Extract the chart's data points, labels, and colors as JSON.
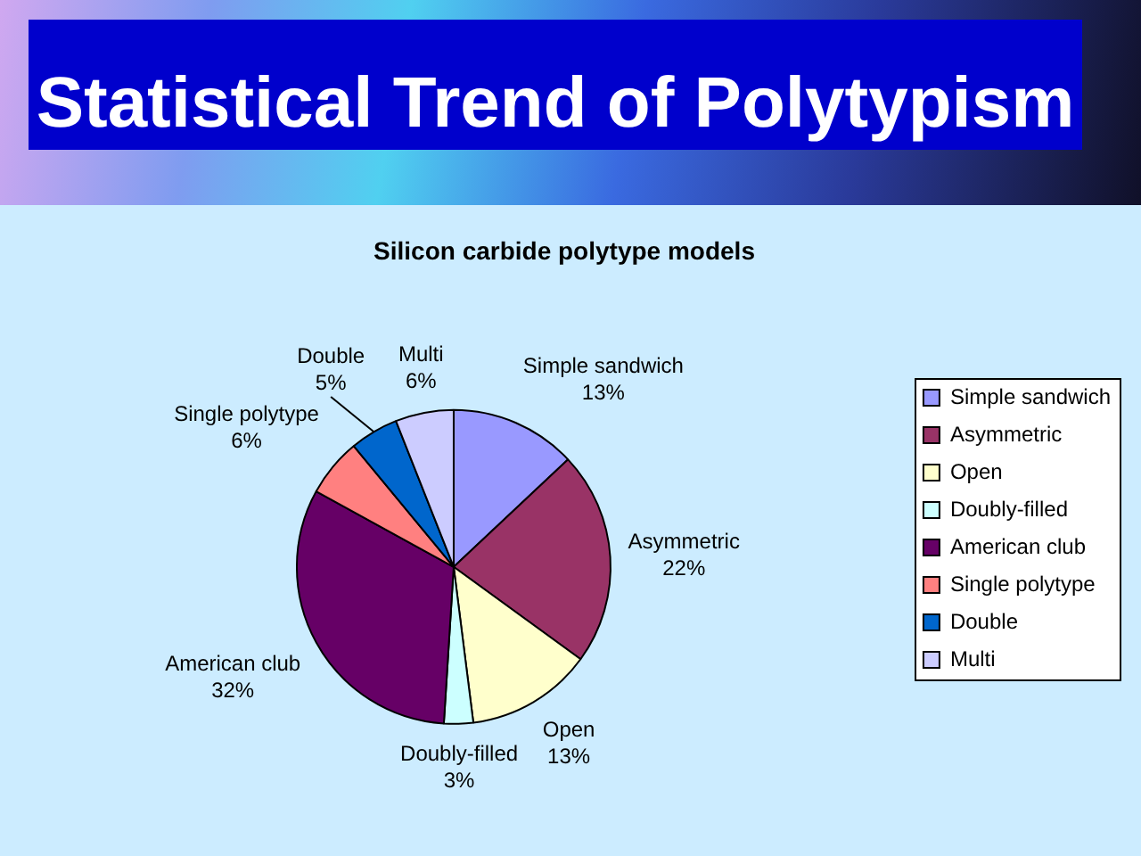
{
  "chart_data": {
    "type": "pie",
    "title": "Statistical Trend of Polytypism",
    "subtitle": "Silicon carbide polytype models",
    "categories": [
      "Simple sandwich",
      "Asymmetric",
      "Open",
      "Doubly-filled",
      "American club",
      "Single polytype",
      "Double",
      "Multi"
    ],
    "values": [
      13,
      22,
      13,
      3,
      32,
      6,
      5,
      6
    ],
    "colors": [
      "#9999ff",
      "#993366",
      "#ffffcc",
      "#ccffff",
      "#660066",
      "#ff8080",
      "#0066cc",
      "#ccccff"
    ],
    "value_labels": [
      "13%",
      "22%",
      "13%",
      "3%",
      "32%",
      "6%",
      "5%",
      "6%"
    ],
    "legend": "right"
  }
}
